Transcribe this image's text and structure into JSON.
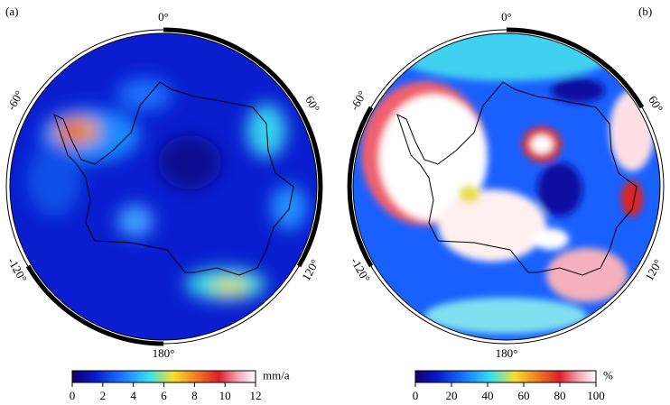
{
  "panels": [
    {
      "label": "(a)",
      "angle_labels": [
        "0°",
        "60°",
        "120°",
        "180°",
        "-120°",
        "-60°"
      ],
      "colorbar": {
        "unit": "mm/a",
        "range": [
          0,
          12
        ],
        "ticks": [
          0,
          2,
          4,
          6,
          8,
          10,
          12
        ]
      }
    },
    {
      "label": "(b)",
      "angle_labels": [
        "0°",
        "60°",
        "120°",
        "180°",
        "-120°",
        "-60°"
      ],
      "colorbar": {
        "unit": "%",
        "range": [
          0,
          100
        ],
        "ticks": [
          0,
          20,
          40,
          60,
          80,
          100
        ]
      }
    }
  ]
}
